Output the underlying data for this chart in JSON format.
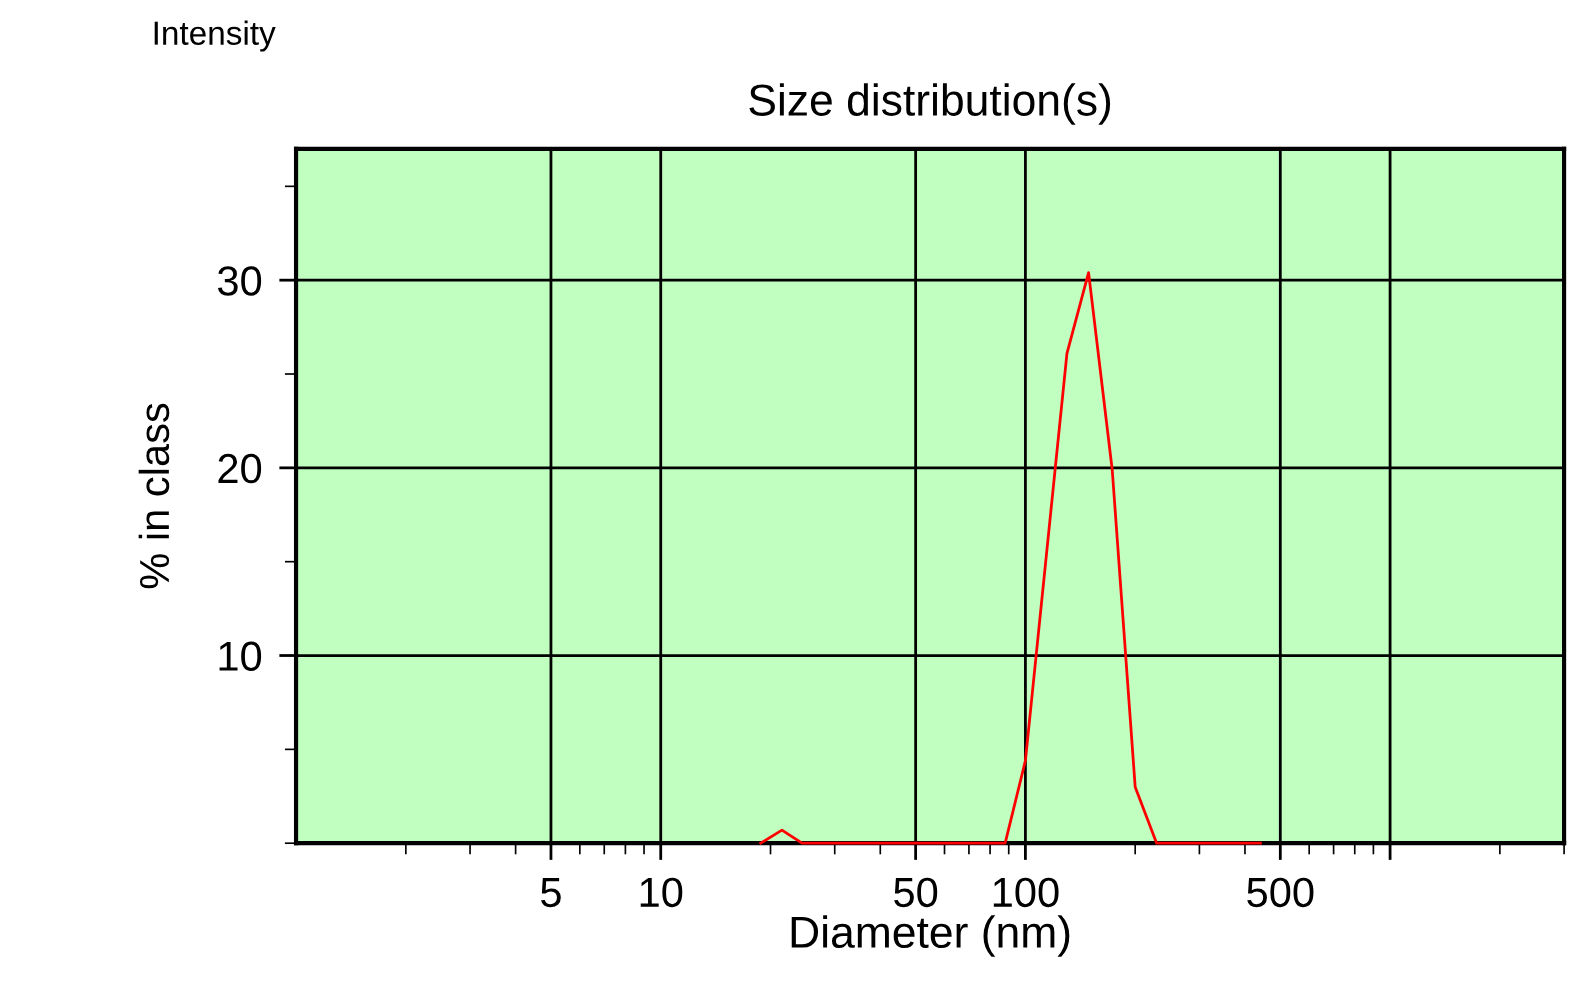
{
  "chart_data": {
    "type": "line",
    "title": "Size distribution(s)",
    "xlabel": "Diameter (nm)",
    "ylabel": "% in class",
    "annotations": [
      "Intensity"
    ],
    "series": [
      {
        "color": "#ff0000",
        "x": [
          18.8,
          21.5,
          24.4,
          88,
          100,
          130,
          149,
          173,
          200,
          229,
          441
        ],
        "values": [
          0,
          0.7,
          0,
          0,
          4.4,
          26.1,
          30.4,
          19.9,
          3.0,
          0,
          0
        ]
      }
    ],
    "log": "x",
    "xlim": [
      1,
      3000
    ],
    "xticks": [
      5,
      10,
      50,
      100,
      500,
      {
        "value": 1000,
        "label": null
      }
    ],
    "ylim": [
      0,
      37
    ],
    "yticks": [
      10,
      20,
      30
    ],
    "grid": true,
    "marker": "none",
    "line_style": "solid"
  }
}
